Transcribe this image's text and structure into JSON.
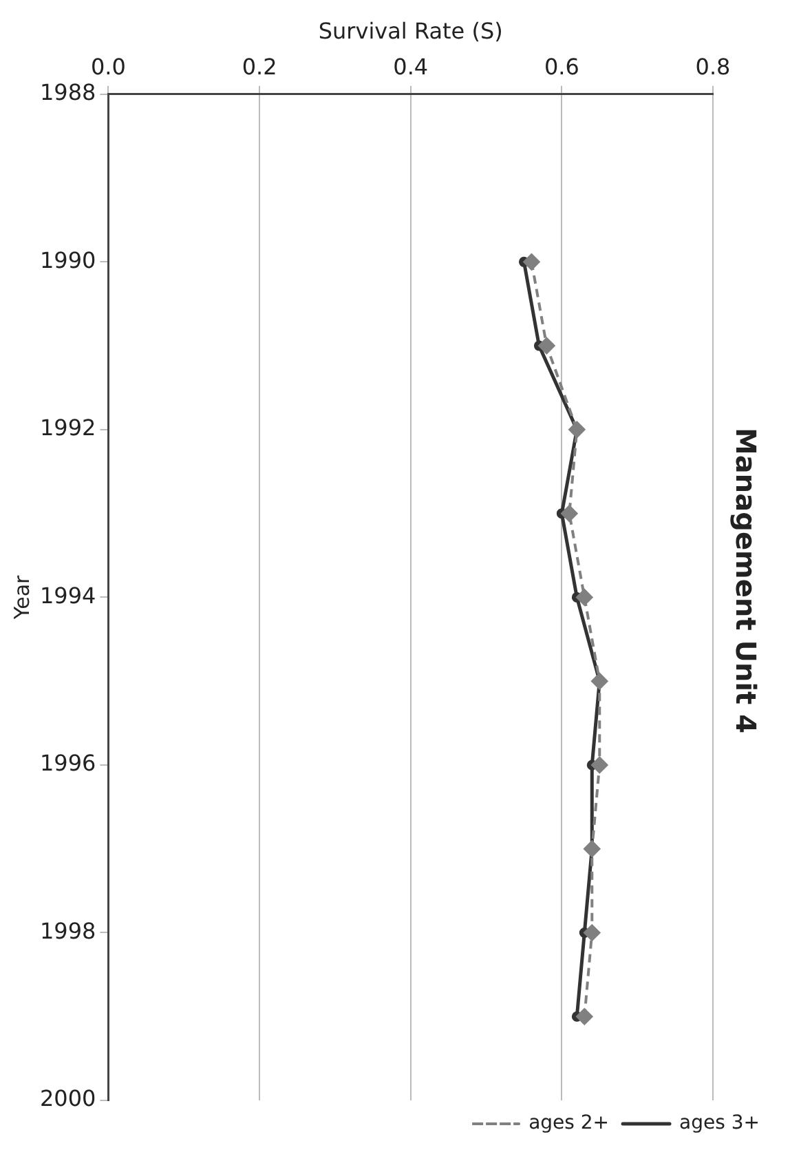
{
  "chart_data": {
    "type": "line",
    "title": "Management Unit 4",
    "xlabel": "Survival Rate (S)",
    "ylabel": "Year",
    "series": [
      {
        "name": "ages 2+",
        "color": "#808080",
        "marker": "diamond",
        "line_style": "dashed",
        "x": [
          0.56,
          0.58,
          0.62,
          0.61,
          0.63,
          0.65,
          0.65,
          0.64,
          0.64,
          0.63
        ],
        "values": [
          1990,
          1991,
          1992,
          1993,
          1994,
          1995,
          1996,
          1997,
          1998,
          1999
        ]
      },
      {
        "name": "ages 3+",
        "color": "#333333",
        "marker": "circle",
        "line_style": "solid",
        "x": [
          0.55,
          0.57,
          0.62,
          0.6,
          0.62,
          0.65,
          0.64,
          0.64,
          0.63,
          0.62
        ],
        "values": [
          1990,
          1991,
          1992,
          1993,
          1994,
          1995,
          1996,
          1997,
          1998,
          1999
        ]
      }
    ],
    "ylim": [
      2000,
      1988
    ],
    "yticks": [
      1988,
      1990,
      1992,
      1994,
      1996,
      1998,
      2000
    ],
    "xlim": [
      0,
      0.8
    ],
    "xticks": [
      {
        "value": 0,
        "label": "0.0"
      },
      {
        "value": 0.2,
        "label": "0.2"
      },
      {
        "value": 0.4,
        "label": "0.4"
      },
      {
        "value": 0.6,
        "label": "0.6"
      },
      {
        "value": 0.8,
        "label": "0.8"
      }
    ],
    "grid": "x",
    "legend": "bottom right"
  }
}
